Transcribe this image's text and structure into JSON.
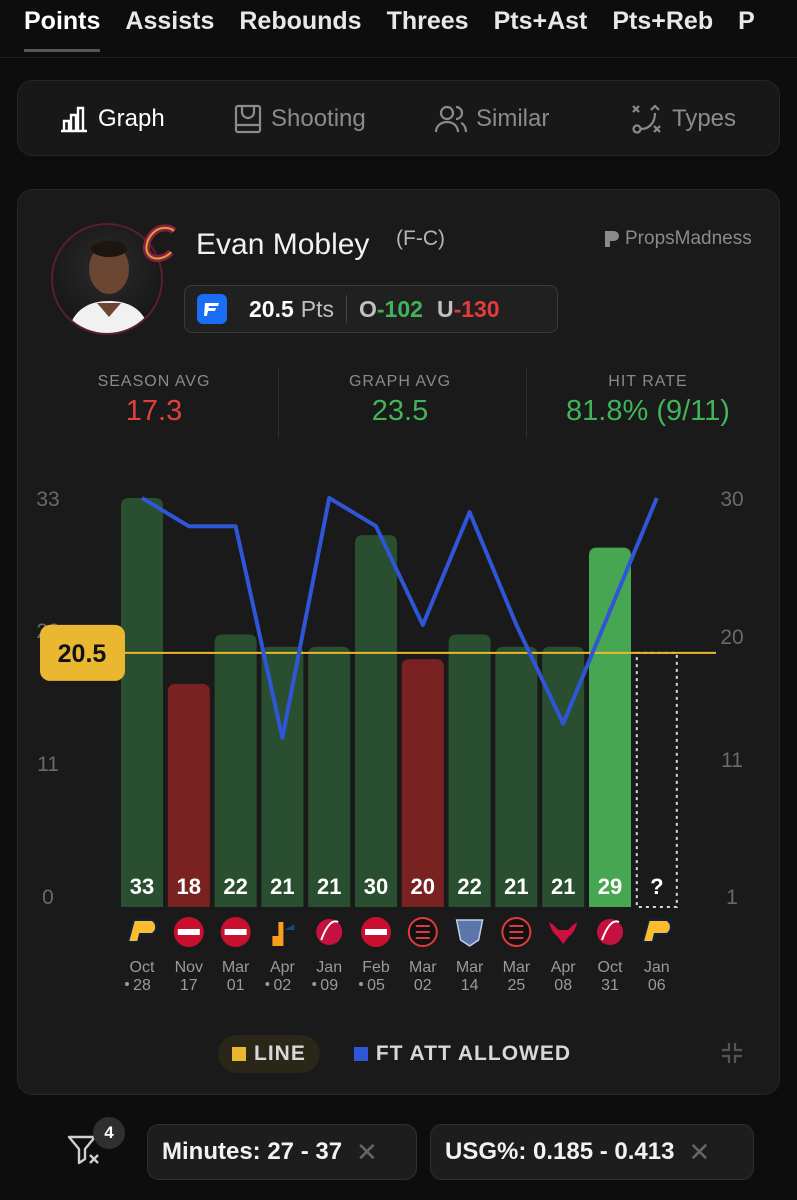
{
  "tabs": [
    "Points",
    "Assists",
    "Rebounds",
    "Threes",
    "Pts+Ast",
    "Pts+Reb",
    "P"
  ],
  "view_tabs": [
    {
      "label": "Graph",
      "icon": "bar-chart-icon",
      "active": true
    },
    {
      "label": "Shooting",
      "icon": "court-icon",
      "active": false
    },
    {
      "label": "Similar",
      "icon": "users-icon",
      "active": false
    },
    {
      "label": "Types",
      "icon": "play-diagram-icon",
      "active": false
    }
  ],
  "player": {
    "name": "Evan Mobley",
    "position": "(F-C)",
    "team": "Cleveland Cavaliers"
  },
  "brand": "PropsMadness",
  "prop": {
    "line": "20.5",
    "unit": "Pts",
    "over_label": "O",
    "over_odds": "-102",
    "under_label": "U",
    "under_odds": "-130"
  },
  "stats": [
    {
      "label": "SEASON AVG",
      "value": "17.3",
      "color": "#e0403f"
    },
    {
      "label": "GRAPH AVG",
      "value": "23.5",
      "color": "#41b45a"
    },
    {
      "label": "HIT RATE",
      "value": "81.8% (9/11)",
      "color": "#41b45a"
    }
  ],
  "legend": {
    "line_label": "LINE",
    "line_color": "#e9b830",
    "ft_label": "FT ATT ALLOWED",
    "ft_color": "#2f56d6"
  },
  "filters": {
    "count": "4",
    "chips": [
      {
        "label": "Minutes: 27 - 37"
      },
      {
        "label": "USG%: 0.185 - 0.413"
      }
    ]
  },
  "chart_data": {
    "type": "bar",
    "line_value": 20.5,
    "line_label": "20.5",
    "ylim": [
      0,
      33
    ],
    "yticks_left": [
      "33",
      "22",
      "11",
      "0"
    ],
    "y2lim": [
      1,
      30
    ],
    "yticks_right": [
      "30",
      "20",
      "11",
      "1"
    ],
    "categories": [
      {
        "month": "Oct",
        "day": "28",
        "dot": true,
        "opponent": "IND"
      },
      {
        "month": "Nov",
        "day": "17",
        "dot": false,
        "opponent": "DET"
      },
      {
        "month": "Mar",
        "day": "01",
        "dot": false,
        "opponent": "DET"
      },
      {
        "month": "Apr",
        "day": "02",
        "dot": true,
        "opponent": "UTA"
      },
      {
        "month": "Jan",
        "day": "09",
        "dot": true,
        "opponent": "TOR"
      },
      {
        "month": "Feb",
        "day": "05",
        "dot": true,
        "opponent": "DET"
      },
      {
        "month": "Mar",
        "day": "02",
        "dot": false,
        "opponent": "POR"
      },
      {
        "month": "Mar",
        "day": "14",
        "dot": false,
        "opponent": "MEM"
      },
      {
        "month": "Mar",
        "day": "25",
        "dot": false,
        "opponent": "POR"
      },
      {
        "month": "Apr",
        "day": "08",
        "dot": false,
        "opponent": "CHI"
      },
      {
        "month": "Oct",
        "day": "31",
        "dot": false,
        "opponent": "TOR"
      },
      {
        "month": "Jan",
        "day": "06",
        "dot": false,
        "opponent": "IND"
      }
    ],
    "points": [
      33,
      18,
      22,
      21,
      21,
      30,
      20,
      22,
      21,
      21,
      29,
      null
    ],
    "bar_labels": [
      "33",
      "18",
      "22",
      "21",
      "21",
      "30",
      "20",
      "22",
      "21",
      "21",
      "29",
      "?"
    ],
    "series": [
      {
        "name": "FT ATT ALLOWED",
        "axis": "right",
        "values": [
          30,
          28,
          28,
          13,
          30,
          28,
          21,
          29,
          21,
          14,
          22,
          30
        ]
      }
    ],
    "colors": {
      "hit": "#2a4e30",
      "miss": "#7a2222",
      "latest": "#46a651",
      "line": "#e9b830",
      "ft": "#2f56d6"
    }
  }
}
